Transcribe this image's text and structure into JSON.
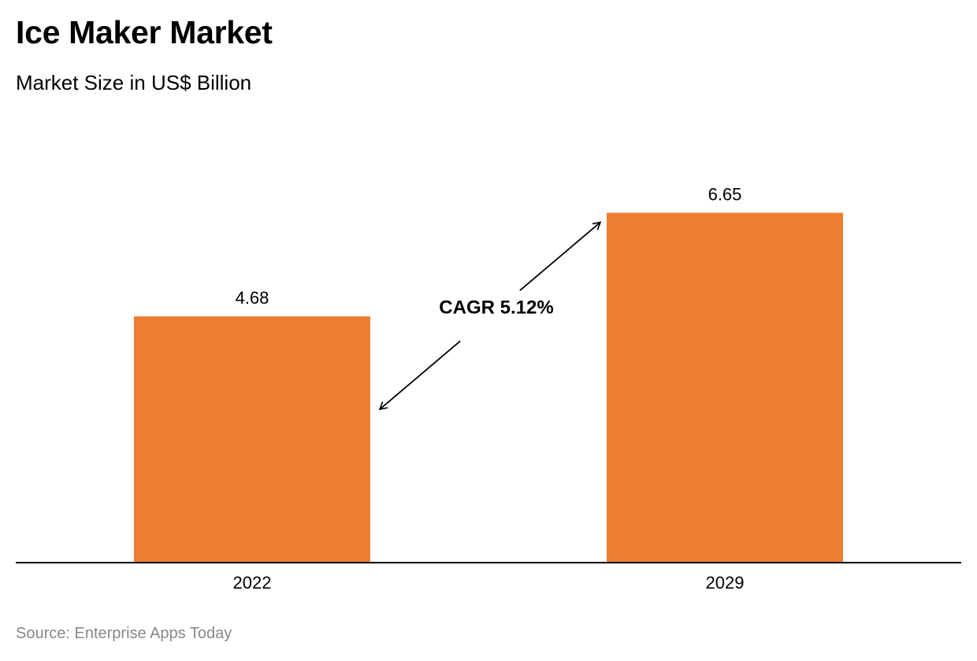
{
  "header": {
    "title": "Ice Maker Market",
    "subtitle": "Market Size in US$ Billion"
  },
  "footer": {
    "source": "Source: Enterprise Apps Today"
  },
  "colors": {
    "bar": "#ED7D31",
    "axis": "#000000",
    "text": "#000000",
    "source": "#888888",
    "arrow": "#000000"
  },
  "chart_data": {
    "type": "bar",
    "title": "Ice Maker Market",
    "subtitle": "Market Size in US$ Billion",
    "categories": [
      "2022",
      "2029"
    ],
    "values": [
      4.68,
      6.65
    ],
    "data_labels": [
      "4.68",
      "6.65"
    ],
    "ylim": [
      0,
      8.9
    ],
    "grid": false,
    "legend": "none",
    "annotations": [
      {
        "text": "CAGR 5.12%",
        "type": "double-arrow",
        "from": "2022",
        "to": "2029"
      }
    ]
  }
}
